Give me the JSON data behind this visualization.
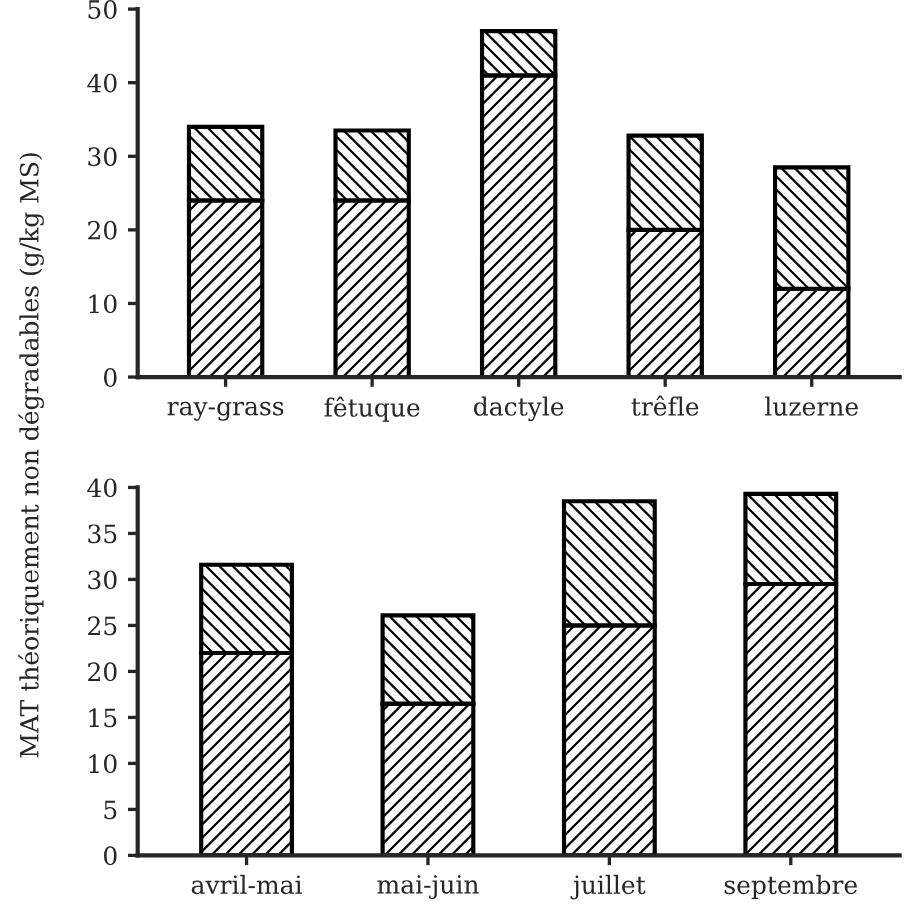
{
  "chart_data": [
    {
      "type": "bar",
      "stacked": true,
      "ylabel": "MAT théoriquement non dégradables (g/kg MS)",
      "categories": [
        "ray-grass",
        "fêtuque",
        "dactyle",
        "trêfle",
        "luzerne"
      ],
      "series": [
        {
          "color": "#000000",
          "values": [
            24,
            24,
            41,
            20,
            12
          ]
        },
        {
          "color": "#000000",
          "values": [
            10,
            9.5,
            6,
            12.8,
            16.5
          ]
        }
      ],
      "ylim": [
        0,
        50
      ],
      "yticks": [
        0,
        10,
        20,
        30,
        40,
        50
      ],
      "grid": false,
      "legend": false
    },
    {
      "type": "bar",
      "stacked": true,
      "categories": [
        "avril-mai",
        "mai-juin",
        "juillet",
        "septembre"
      ],
      "series": [
        {
          "color": "#000000",
          "values": [
            22,
            16.5,
            25,
            29.5
          ]
        },
        {
          "color": "#000000",
          "values": [
            9.6,
            9.6,
            13.5,
            9.8
          ]
        }
      ],
      "ylim": [
        0,
        40
      ],
      "yticks": [
        0,
        5,
        10,
        15,
        20,
        25,
        30,
        35,
        40
      ],
      "grid": false,
      "legend": false
    }
  ]
}
